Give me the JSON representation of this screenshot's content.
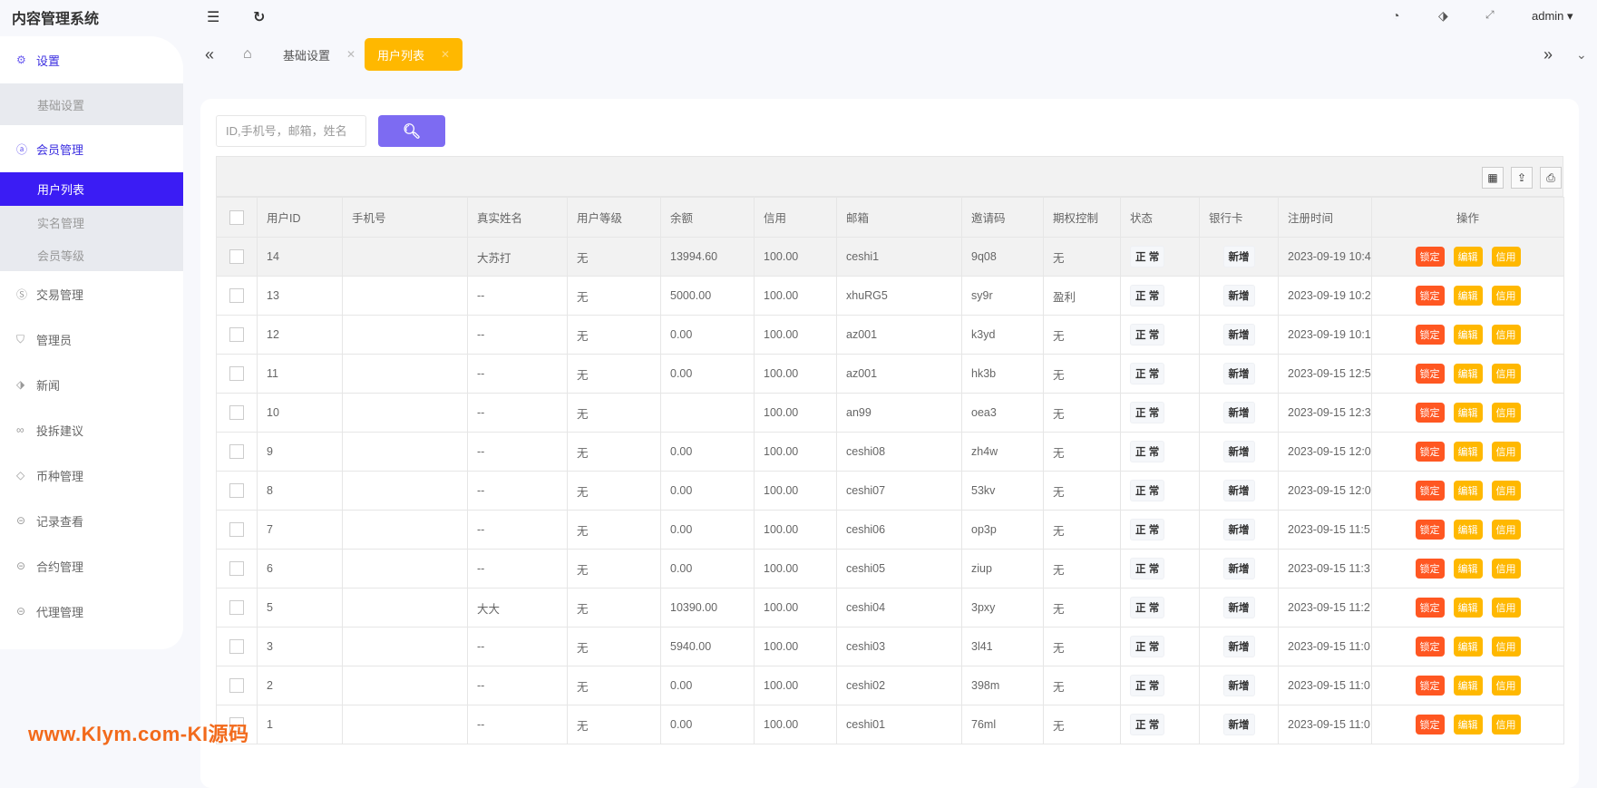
{
  "app": {
    "title": "内容管理系统",
    "user": "admin"
  },
  "sidebar": {
    "groups": [
      {
        "label": "设置",
        "icon": "gear-icon",
        "children": [
          "基础设置"
        ]
      },
      {
        "label": "会员管理",
        "icon": "user-icon",
        "children": [
          "用户列表",
          "实名管理",
          "会员等级"
        ]
      }
    ],
    "items": [
      {
        "label": "交易管理",
        "icon": "dollar-icon"
      },
      {
        "label": "管理员",
        "icon": "shield-icon"
      },
      {
        "label": "新闻",
        "icon": "tag-icon"
      },
      {
        "label": "投拆建议",
        "icon": "infinity-icon"
      },
      {
        "label": "币种管理",
        "icon": "diamond-icon"
      },
      {
        "label": "记录查看",
        "icon": "login-icon"
      },
      {
        "label": "合约管理",
        "icon": "login-icon"
      },
      {
        "label": "代理管理",
        "icon": "login-icon"
      }
    ]
  },
  "tabs": [
    {
      "label": "基础设置"
    },
    {
      "label": "用户列表",
      "active": true
    }
  ],
  "search": {
    "placeholder": "ID,手机号，邮箱，姓名"
  },
  "table": {
    "columns": [
      "用户ID",
      "手机号",
      "真实姓名",
      "用户等级",
      "余额",
      "信用",
      "邮箱",
      "邀请码",
      "期权控制",
      "状态",
      "银行卡",
      "注册时间",
      "操作"
    ],
    "rows": [
      [
        "14",
        "",
        "大苏打",
        "无",
        "13994.60",
        "100.00",
        "ceshi1",
        "9q08",
        "无",
        "正 常",
        "新增",
        "2023-09-19 10:4"
      ],
      [
        "13",
        "",
        "--",
        "无",
        "5000.00",
        "100.00",
        "xhuRG5",
        "sy9r",
        "盈利",
        "正 常",
        "新增",
        "2023-09-19 10:2"
      ],
      [
        "12",
        "",
        "--",
        "无",
        "0.00",
        "100.00",
        "az001",
        "k3yd",
        "无",
        "正 常",
        "新增",
        "2023-09-19 10:1"
      ],
      [
        "11",
        "",
        "--",
        "无",
        "0.00",
        "100.00",
        "az001",
        "hk3b",
        "无",
        "正 常",
        "新增",
        "2023-09-15 12:5"
      ],
      [
        "10",
        "",
        "--",
        "无",
        "",
        "100.00",
        "an99",
        "oea3",
        "无",
        "正 常",
        "新增",
        "2023-09-15 12:3"
      ],
      [
        "9",
        "",
        "--",
        "无",
        "0.00",
        "100.00",
        "ceshi08",
        "zh4w",
        "无",
        "正 常",
        "新增",
        "2023-09-15 12:0"
      ],
      [
        "8",
        "",
        "--",
        "无",
        "0.00",
        "100.00",
        "ceshi07",
        "53kv",
        "无",
        "正 常",
        "新增",
        "2023-09-15 12:0"
      ],
      [
        "7",
        "",
        "--",
        "无",
        "0.00",
        "100.00",
        "ceshi06",
        "op3p",
        "无",
        "正 常",
        "新增",
        "2023-09-15 11:5"
      ],
      [
        "6",
        "",
        "--",
        "无",
        "0.00",
        "100.00",
        "ceshi05",
        "ziup",
        "无",
        "正 常",
        "新增",
        "2023-09-15 11:3"
      ],
      [
        "5",
        "",
        "大大",
        "无",
        "10390.00",
        "100.00",
        "ceshi04",
        "3pxy",
        "无",
        "正 常",
        "新增",
        "2023-09-15 11:2"
      ],
      [
        "3",
        "",
        "--",
        "无",
        "5940.00",
        "100.00",
        "ceshi03",
        "3l41",
        "无",
        "正 常",
        "新增",
        "2023-09-15 11:0"
      ],
      [
        "2",
        "",
        "--",
        "无",
        "0.00",
        "100.00",
        "ceshi02",
        "398m",
        "无",
        "正 常",
        "新增",
        "2023-09-15 11:0"
      ],
      [
        "1",
        "",
        "--",
        "无",
        "0.00",
        "100.00",
        "ceshi01",
        "76ml",
        "无",
        "正 常",
        "新增",
        "2023-09-15 11:0"
      ]
    ],
    "actions": [
      "锁定",
      "编辑",
      "信用"
    ]
  },
  "colors": {
    "accent": "#3b1cf4",
    "tab_active": "#ffb800",
    "danger": "#ff5722",
    "warn": "#ffb800",
    "search_btn": "#7d6bf2"
  },
  "watermark": "www.Klym.com-KI源码"
}
